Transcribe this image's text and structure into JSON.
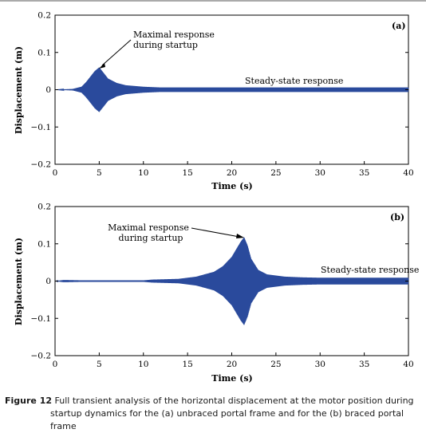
{
  "chart_data": [
    {
      "type": "line",
      "panel_label": "(a)",
      "xlabel": "Time (s)",
      "ylabel": "Displacement (m)",
      "xlim": [
        0,
        40
      ],
      "ylim": [
        -0.2,
        0.2
      ],
      "xticks": [
        0,
        5,
        10,
        15,
        20,
        25,
        30,
        35,
        40
      ],
      "yticks": [
        -0.2,
        -0.1,
        0,
        0.1,
        0.2
      ],
      "xtick_labels": [
        "0",
        "5",
        "10",
        "15",
        "20",
        "25",
        "30",
        "35",
        "40"
      ],
      "ytick_labels": [
        "−0.2",
        "−0.1",
        "0",
        "0.1",
        "0.2"
      ],
      "color": "#2a4a9c",
      "envelope": {
        "x": [
          0,
          2,
          3,
          3.5,
          4,
          4.5,
          5,
          5.5,
          6,
          7,
          8,
          10,
          12,
          15,
          20,
          40
        ],
        "y": [
          0.0,
          0.002,
          0.008,
          0.02,
          0.035,
          0.05,
          0.06,
          0.045,
          0.03,
          0.018,
          0.012,
          0.008,
          0.006,
          0.006,
          0.006,
          0.006
        ]
      },
      "annotations": [
        {
          "text": [
            "Maximal response",
            "during startup"
          ],
          "target": [
            5.0,
            0.06
          ]
        },
        {
          "text": [
            "Steady-state response"
          ]
        }
      ]
    },
    {
      "type": "line",
      "panel_label": "(b)",
      "xlabel": "Time (s)",
      "ylabel": "Displacement (m)",
      "xlim": [
        0,
        40
      ],
      "ylim": [
        -0.2,
        0.2
      ],
      "xticks": [
        0,
        5,
        10,
        15,
        20,
        25,
        30,
        35,
        40
      ],
      "yticks": [
        -0.2,
        -0.1,
        0,
        0.1,
        0.2
      ],
      "xtick_labels": [
        "0",
        "5",
        "10",
        "15",
        "20",
        "25",
        "30",
        "35",
        "40"
      ],
      "ytick_labels": [
        "−0.2",
        "−0.1",
        "0",
        "0.1",
        "0.2"
      ],
      "color": "#2a4a9c",
      "envelope": {
        "x": [
          0,
          1,
          3,
          10,
          11,
          14,
          16,
          18,
          19,
          20,
          20.5,
          21,
          21.4,
          21.8,
          22.2,
          23,
          24,
          26,
          28,
          30,
          40
        ],
        "y": [
          0.0,
          0.003,
          0.002,
          0.002,
          0.004,
          0.006,
          0.012,
          0.025,
          0.04,
          0.065,
          0.085,
          0.105,
          0.118,
          0.095,
          0.06,
          0.03,
          0.018,
          0.012,
          0.01,
          0.009,
          0.009
        ]
      },
      "annotations": [
        {
          "text": [
            "Maximal response",
            "during startup"
          ],
          "target": [
            21.3,
            0.117
          ]
        },
        {
          "text": [
            "Steady-state response"
          ]
        }
      ]
    }
  ],
  "caption": {
    "label": "Figure 12",
    "line1": " Full transient analysis of the horizontal displacement at the motor position during",
    "line2": "startup dynamics for the (a) unbraced portal frame and for the (b) braced portal frame"
  }
}
